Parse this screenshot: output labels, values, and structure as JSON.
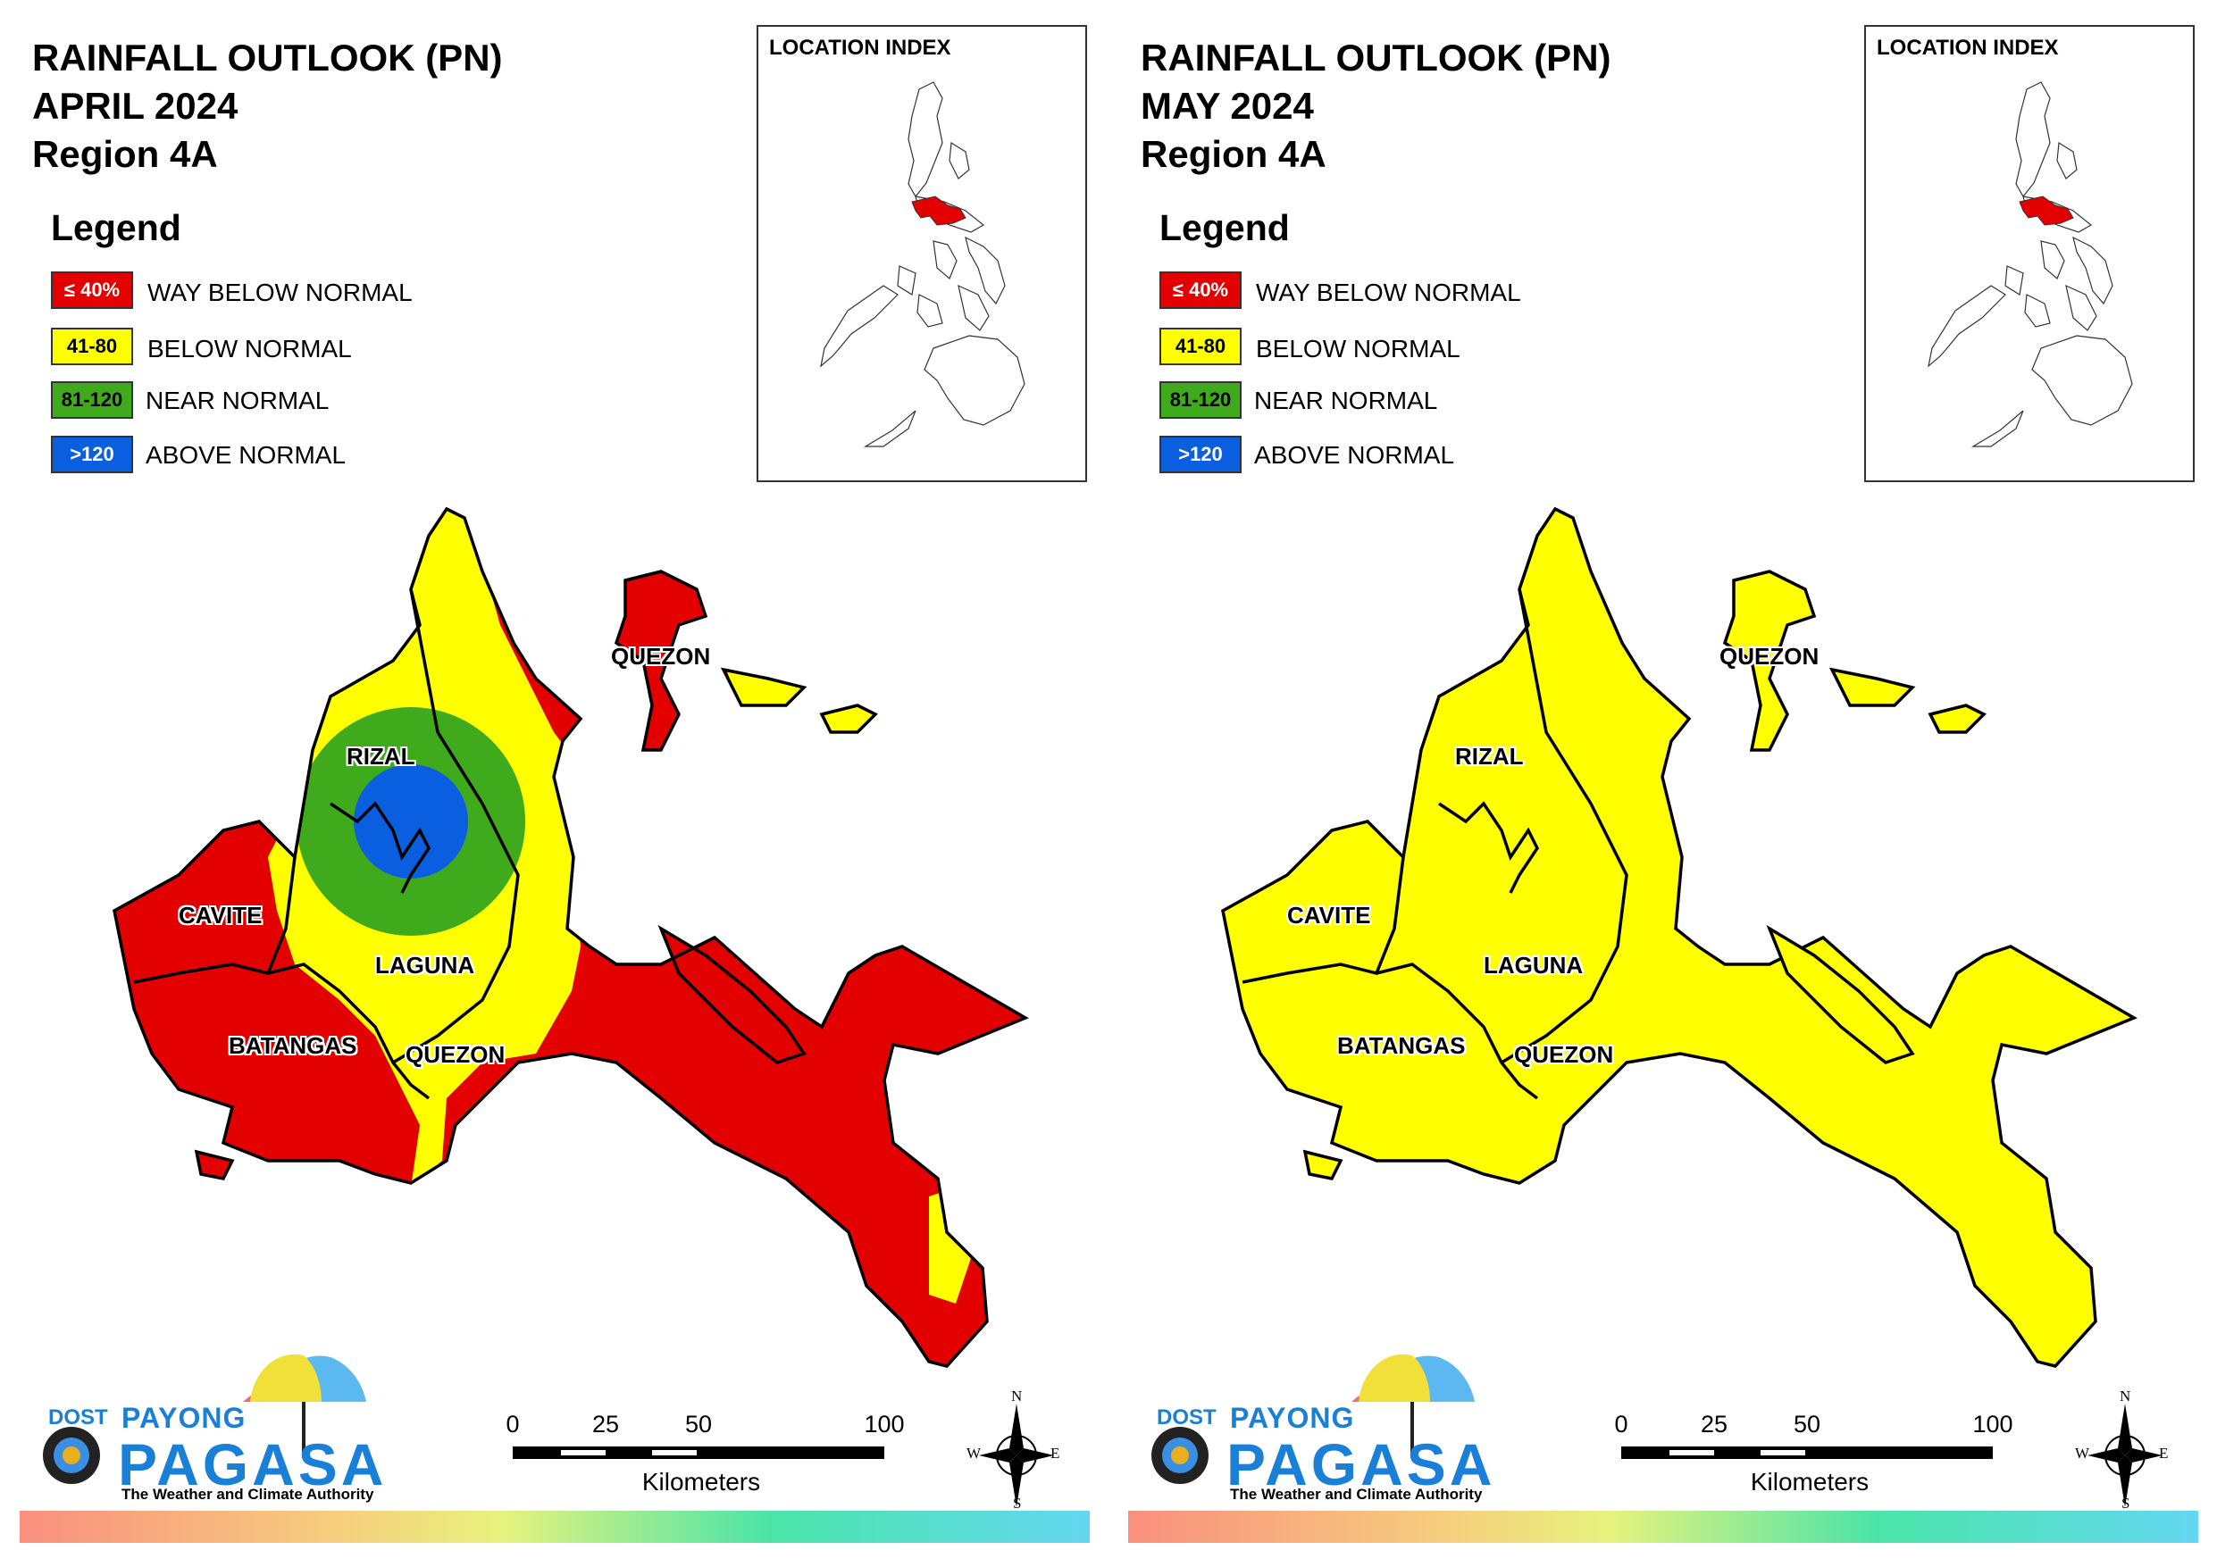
{
  "panels": [
    {
      "title": {
        "line1": "RAINFALL OUTLOOK (PN)",
        "line2": "APRIL 2024",
        "line3": "Region 4A"
      },
      "legend": {
        "heading": "Legend",
        "items": [
          {
            "swatch": "≤ 40%",
            "label": "WAY BELOW NORMAL",
            "color": "#e30000",
            "text_color": "#ffffff"
          },
          {
            "swatch": "41-80",
            "label": "BELOW NORMAL",
            "color": "#ffff00",
            "text_color": "#000000"
          },
          {
            "swatch": "81-120",
            "label": "NEAR NORMAL",
            "color": "#3faa1c",
            "text_color": "#000000"
          },
          {
            "swatch": ">120",
            "label": "ABOVE NORMAL",
            "color": "#0a5ee0",
            "text_color": "#ffffff"
          }
        ]
      },
      "inset": {
        "title": "LOCATION INDEX",
        "highlight_color": "#e30000"
      },
      "provinces": [
        "QUEZON",
        "RIZAL",
        "CAVITE",
        "LAGUNA",
        "BATANGAS",
        "QUEZON"
      ],
      "outlook": {
        "RIZAL": "ABOVE NORMAL / NEAR NORMAL",
        "CAVITE": "WAY BELOW NORMAL",
        "BATANGAS": "WAY BELOW NORMAL",
        "LAGUNA": "BELOW NORMAL",
        "QUEZON": "WAY BELOW NORMAL / BELOW NORMAL"
      },
      "logo": {
        "dost": "DOST",
        "payong": "PAYONG",
        "pagasa": "PAGASA",
        "tagline": "The Weather and Climate Authority"
      },
      "scale": {
        "ticks": [
          "0",
          "25",
          "50",
          "100"
        ],
        "unit": "Kilometers"
      },
      "compass": {
        "n": "N",
        "s": "S",
        "e": "E",
        "w": "W"
      }
    },
    {
      "title": {
        "line1": "RAINFALL OUTLOOK (PN)",
        "line2": "MAY 2024",
        "line3": "Region 4A"
      },
      "legend": {
        "heading": "Legend",
        "items": [
          {
            "swatch": "≤ 40%",
            "label": "WAY BELOW NORMAL",
            "color": "#e30000",
            "text_color": "#ffffff"
          },
          {
            "swatch": "41-80",
            "label": "BELOW NORMAL",
            "color": "#ffff00",
            "text_color": "#000000"
          },
          {
            "swatch": "81-120",
            "label": "NEAR NORMAL",
            "color": "#3faa1c",
            "text_color": "#000000"
          },
          {
            "swatch": ">120",
            "label": "ABOVE NORMAL",
            "color": "#0a5ee0",
            "text_color": "#ffffff"
          }
        ]
      },
      "inset": {
        "title": "LOCATION INDEX",
        "highlight_color": "#e30000"
      },
      "provinces": [
        "QUEZON",
        "RIZAL",
        "CAVITE",
        "LAGUNA",
        "BATANGAS",
        "QUEZON"
      ],
      "outlook": {
        "RIZAL": "BELOW NORMAL",
        "CAVITE": "BELOW NORMAL",
        "BATANGAS": "BELOW NORMAL",
        "LAGUNA": "BELOW NORMAL",
        "QUEZON": "BELOW NORMAL"
      },
      "logo": {
        "dost": "DOST",
        "payong": "PAYONG",
        "pagasa": "PAGASA",
        "tagline": "The Weather and Climate Authority"
      },
      "scale": {
        "ticks": [
          "0",
          "25",
          "50",
          "100"
        ],
        "unit": "Kilometers"
      },
      "compass": {
        "n": "N",
        "s": "S",
        "e": "E",
        "w": "W"
      }
    }
  ]
}
